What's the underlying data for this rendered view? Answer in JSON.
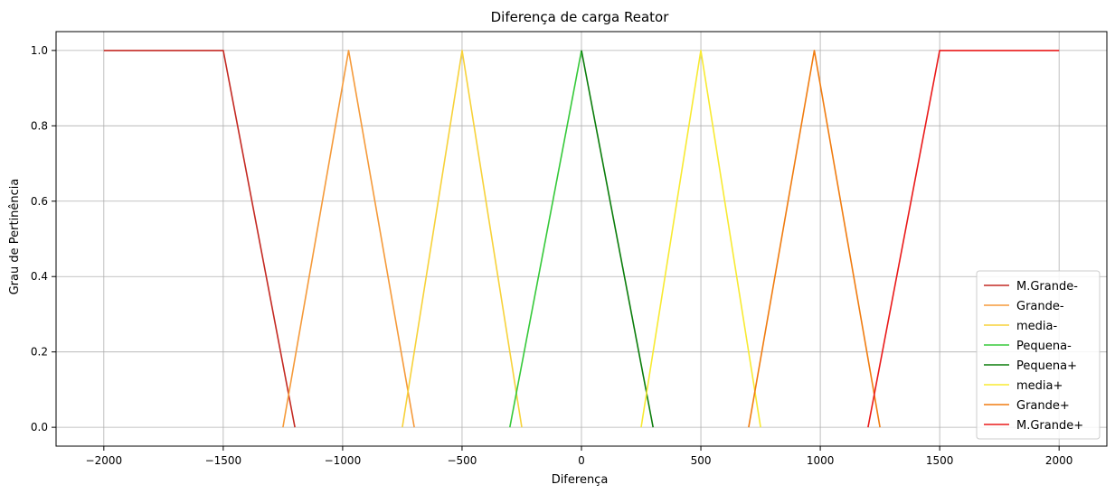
{
  "chart_data": {
    "type": "line",
    "title": "Diferença de carga Reator",
    "xlabel": "Diferença",
    "ylabel": "Grau de Pertinência",
    "xlim": [
      -2200,
      2200
    ],
    "ylim": [
      -0.05,
      1.05
    ],
    "xticks": [
      -2000,
      -1500,
      -1000,
      -500,
      0,
      500,
      1000,
      1500,
      2000
    ],
    "xtick_labels": [
      "−2000",
      "−1500",
      "−1000",
      "−500",
      "0",
      "500",
      "1000",
      "1500",
      "2000"
    ],
    "yticks": [
      0.0,
      0.2,
      0.4,
      0.6,
      0.8,
      1.0
    ],
    "ytick_labels": [
      "0.0",
      "0.2",
      "0.4",
      "0.6",
      "0.8",
      "1.0"
    ],
    "grid": true,
    "legend_position": "bottom-right",
    "series": [
      {
        "name": "M.Grande-",
        "color": "#c42a23",
        "x": [
          -2000,
          -1500,
          -1200
        ],
        "y": [
          1,
          1,
          0
        ]
      },
      {
        "name": "Grande-",
        "color": "#f59a3a",
        "x": [
          -1250,
          -975,
          -700
        ],
        "y": [
          0,
          1,
          0
        ]
      },
      {
        "name": "media-",
        "color": "#f7d23a",
        "x": [
          -750,
          -500,
          -250
        ],
        "y": [
          0,
          1,
          0
        ]
      },
      {
        "name": "Pequena-",
        "color": "#36c93a",
        "x": [
          -300,
          0
        ],
        "y": [
          0,
          1
        ]
      },
      {
        "name": "Pequena+",
        "color": "#0b7d0b",
        "x": [
          0,
          300
        ],
        "y": [
          1,
          0
        ]
      },
      {
        "name": "media+",
        "color": "#f8ea32",
        "x": [
          250,
          500,
          750
        ],
        "y": [
          0,
          1,
          0
        ]
      },
      {
        "name": "Grande+",
        "color": "#f07c10",
        "x": [
          700,
          975,
          1250
        ],
        "y": [
          0,
          1,
          0
        ]
      },
      {
        "name": "M.Grande+",
        "color": "#ea1a1a",
        "x": [
          1200,
          1500,
          2000
        ],
        "y": [
          0,
          1,
          1
        ]
      }
    ]
  }
}
